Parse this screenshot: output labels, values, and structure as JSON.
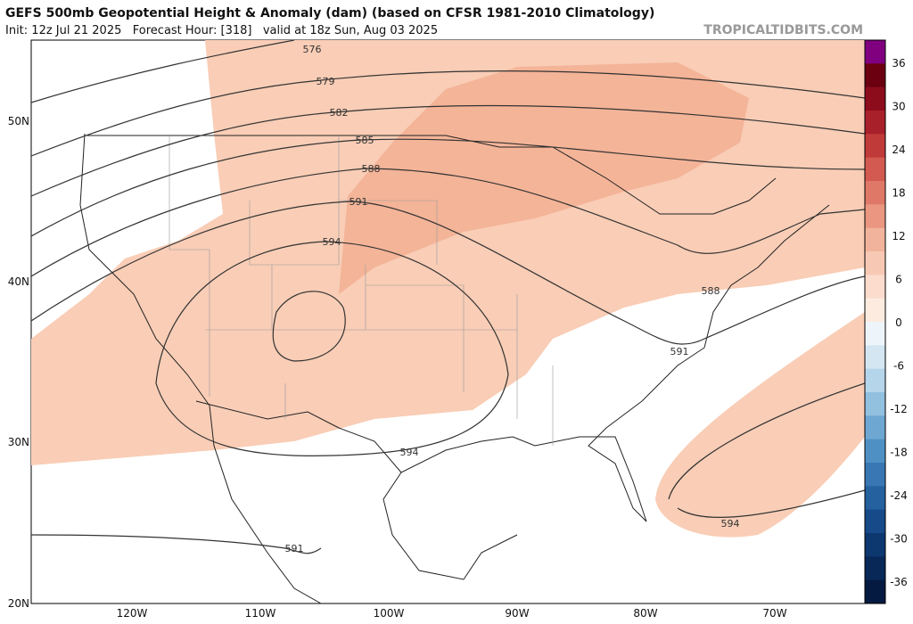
{
  "header": {
    "title": "GEFS 500mb Geopotential Height & Anomaly (dam) (based on CFSR 1981-2010 Climatology)",
    "subtitle": "Init: 12z Jul 21 2025   Forecast Hour: [318]   valid at 18z Sun, Aug 03 2025",
    "source": "TROPICALTIDBITS.COM"
  },
  "map": {
    "lat_labels": [
      "50N",
      "40N",
      "30N",
      "20N"
    ],
    "lon_labels": [
      "120W",
      "110W",
      "100W",
      "90W",
      "80W",
      "70W"
    ],
    "contour_labels": [
      576,
      579,
      582,
      585,
      588,
      591,
      594,
      588,
      591,
      594,
      591,
      594
    ]
  },
  "colorbar": {
    "ticks": [
      36,
      30,
      24,
      18,
      12,
      6,
      0,
      -6,
      -12,
      -18,
      -24,
      -30,
      -36
    ]
  }
}
